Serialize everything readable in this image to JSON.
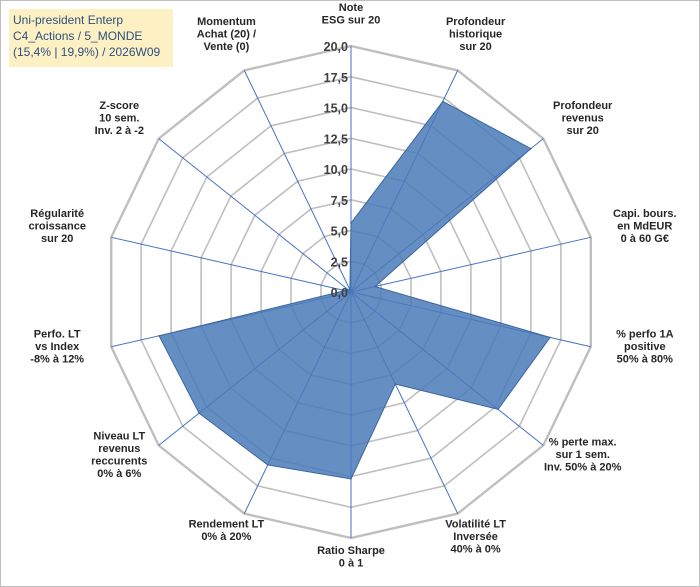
{
  "title_box": {
    "line1": "Uni-president Enterp",
    "line2": "C4_Actions / 5_MONDE",
    "line3": "(15,4% | 19,9%) / 2026W09"
  },
  "colors": {
    "fill": "#4a7ab8",
    "grid": "#bfbfbf",
    "spoke": "#4472c4",
    "title_bg": "#fdf1c4",
    "title_text": "#2e4f7f"
  },
  "chart_data": {
    "type": "radar",
    "rmin": 0,
    "rmax": 20,
    "ticks": [
      "0,0",
      "2,5",
      "5,0",
      "7,5",
      "10,0",
      "12,5",
      "15,0",
      "17,5",
      "20,0"
    ],
    "tick_values": [
      0,
      2.5,
      5,
      7.5,
      10,
      12.5,
      15,
      17.5,
      20
    ],
    "axes": [
      [
        "Note",
        "ESG sur 20"
      ],
      [
        "Profondeur",
        "historique",
        "sur 20"
      ],
      [
        "Profondeur",
        "revenus",
        "sur 20"
      ],
      [
        "Capi. bours.",
        "en MdEUR",
        "0 à 60 G€"
      ],
      [
        "% perfo 1A",
        "positive",
        "50% à 80%"
      ],
      [
        "% perte max.",
        "sur 1 sem.",
        "Inv. 50% à 20%"
      ],
      [
        "Volatilité LT",
        "Inversée",
        "40% à 0%"
      ],
      [
        "Ratio Sharpe",
        "0 à 1"
      ],
      [
        "Rendement LT",
        "0% à 20%"
      ],
      [
        "Niveau LT",
        "revenus",
        "reccurents",
        "0% à 6%"
      ],
      [
        "Perfo. LT",
        "vs Index",
        "-8% à 12%"
      ],
      [
        "Régularité",
        "croissance",
        "sur 20"
      ],
      [
        "Z-score",
        "10 sem.",
        "Inv. 2 à -2"
      ],
      [
        "Momentum",
        "Achat (20) /",
        "Vente (0)"
      ]
    ],
    "values": [
      5.6,
      17.2,
      18.7,
      2.0,
      16.6,
      15.3,
      8.3,
      15.2,
      15.6,
      15.8,
      16.0,
      0.5,
      0.3,
      0.2
    ],
    "series_name": "Uni-president Enterp"
  }
}
